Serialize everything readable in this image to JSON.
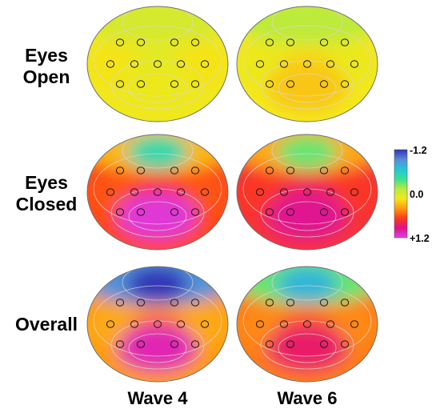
{
  "rows": [
    {
      "line1": "Eyes",
      "line2": "Open"
    },
    {
      "line1": "Eyes",
      "line2": "Closed"
    },
    {
      "line1": "Overall",
      "line2": ""
    }
  ],
  "columns": [
    "Wave 4",
    "Wave 6"
  ],
  "color_scale": {
    "top_label": "-1.2",
    "mid_label": "0.0",
    "bottom_label": "+1.2",
    "colors": [
      "#3034b8",
      "#5a8ad8",
      "#20c8d8",
      "#38e090",
      "#b6ea40",
      "#f4e81a",
      "#ff9a10",
      "#ff3a1a",
      "#e0108a",
      "#e040e8"
    ]
  },
  "maps": [
    {
      "id": "eyes-open-wave4",
      "values": {
        "front": 0.0,
        "front_center": 0.0,
        "mid_left": 0.15,
        "mid_center": 0.05,
        "mid_right": 0.15,
        "back": 0.1
      }
    },
    {
      "id": "eyes-open-wave6",
      "values": {
        "front": -0.1,
        "front_center": -0.1,
        "mid_left": 0.1,
        "mid_center": 0.2,
        "mid_right": 0.1,
        "back": 0.25
      }
    },
    {
      "id": "eyes-closed-wave4",
      "values": {
        "front": 0.3,
        "front_center": -0.5,
        "mid_left": 0.6,
        "mid_center": 0.7,
        "mid_right": 0.6,
        "back": 1.15
      }
    },
    {
      "id": "eyes-closed-wave6",
      "values": {
        "front": 0.35,
        "front_center": -0.3,
        "mid_left": 0.7,
        "mid_center": 0.8,
        "mid_right": 0.7,
        "back": 0.95
      }
    },
    {
      "id": "overall-wave4",
      "values": {
        "front": -0.9,
        "front_center": -1.2,
        "mid_left": 0.35,
        "mid_center": 0.5,
        "mid_right": 0.35,
        "back": 1.05
      }
    },
    {
      "id": "overall-wave6",
      "values": {
        "front": -0.3,
        "front_center": -0.75,
        "mid_left": 0.45,
        "mid_center": 0.55,
        "mid_right": 0.45,
        "back": 0.85
      }
    }
  ]
}
